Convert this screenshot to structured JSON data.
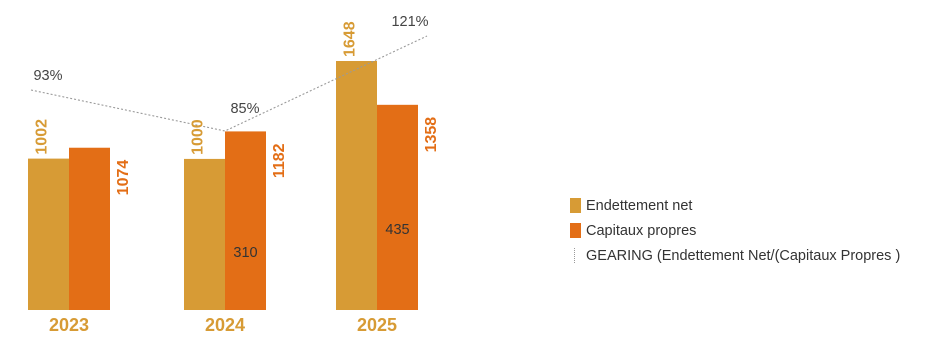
{
  "chart_data": {
    "type": "bar",
    "categories": [
      "2023",
      "2024",
      "2025"
    ],
    "series": [
      {
        "name": "Endettement net",
        "values": [
          1002,
          1000,
          1648
        ],
        "color": "#D79B35"
      },
      {
        "name": "Capitaux propres",
        "values": [
          1074,
          1182,
          1358
        ],
        "color": "#E36E16"
      }
    ],
    "inner_labels": [
      "",
      "310",
      "435"
    ],
    "gearing": {
      "name": "GEARING (Endettement Net/(Capitaux Propres )",
      "values": [
        93,
        85,
        121
      ],
      "labels": [
        "93%",
        "85%",
        "121%"
      ],
      "color": "#9a9a9a"
    },
    "ylim": [
      0,
      1800
    ],
    "title": "",
    "xlabel": "",
    "ylabel": "",
    "legend_position": "right"
  }
}
